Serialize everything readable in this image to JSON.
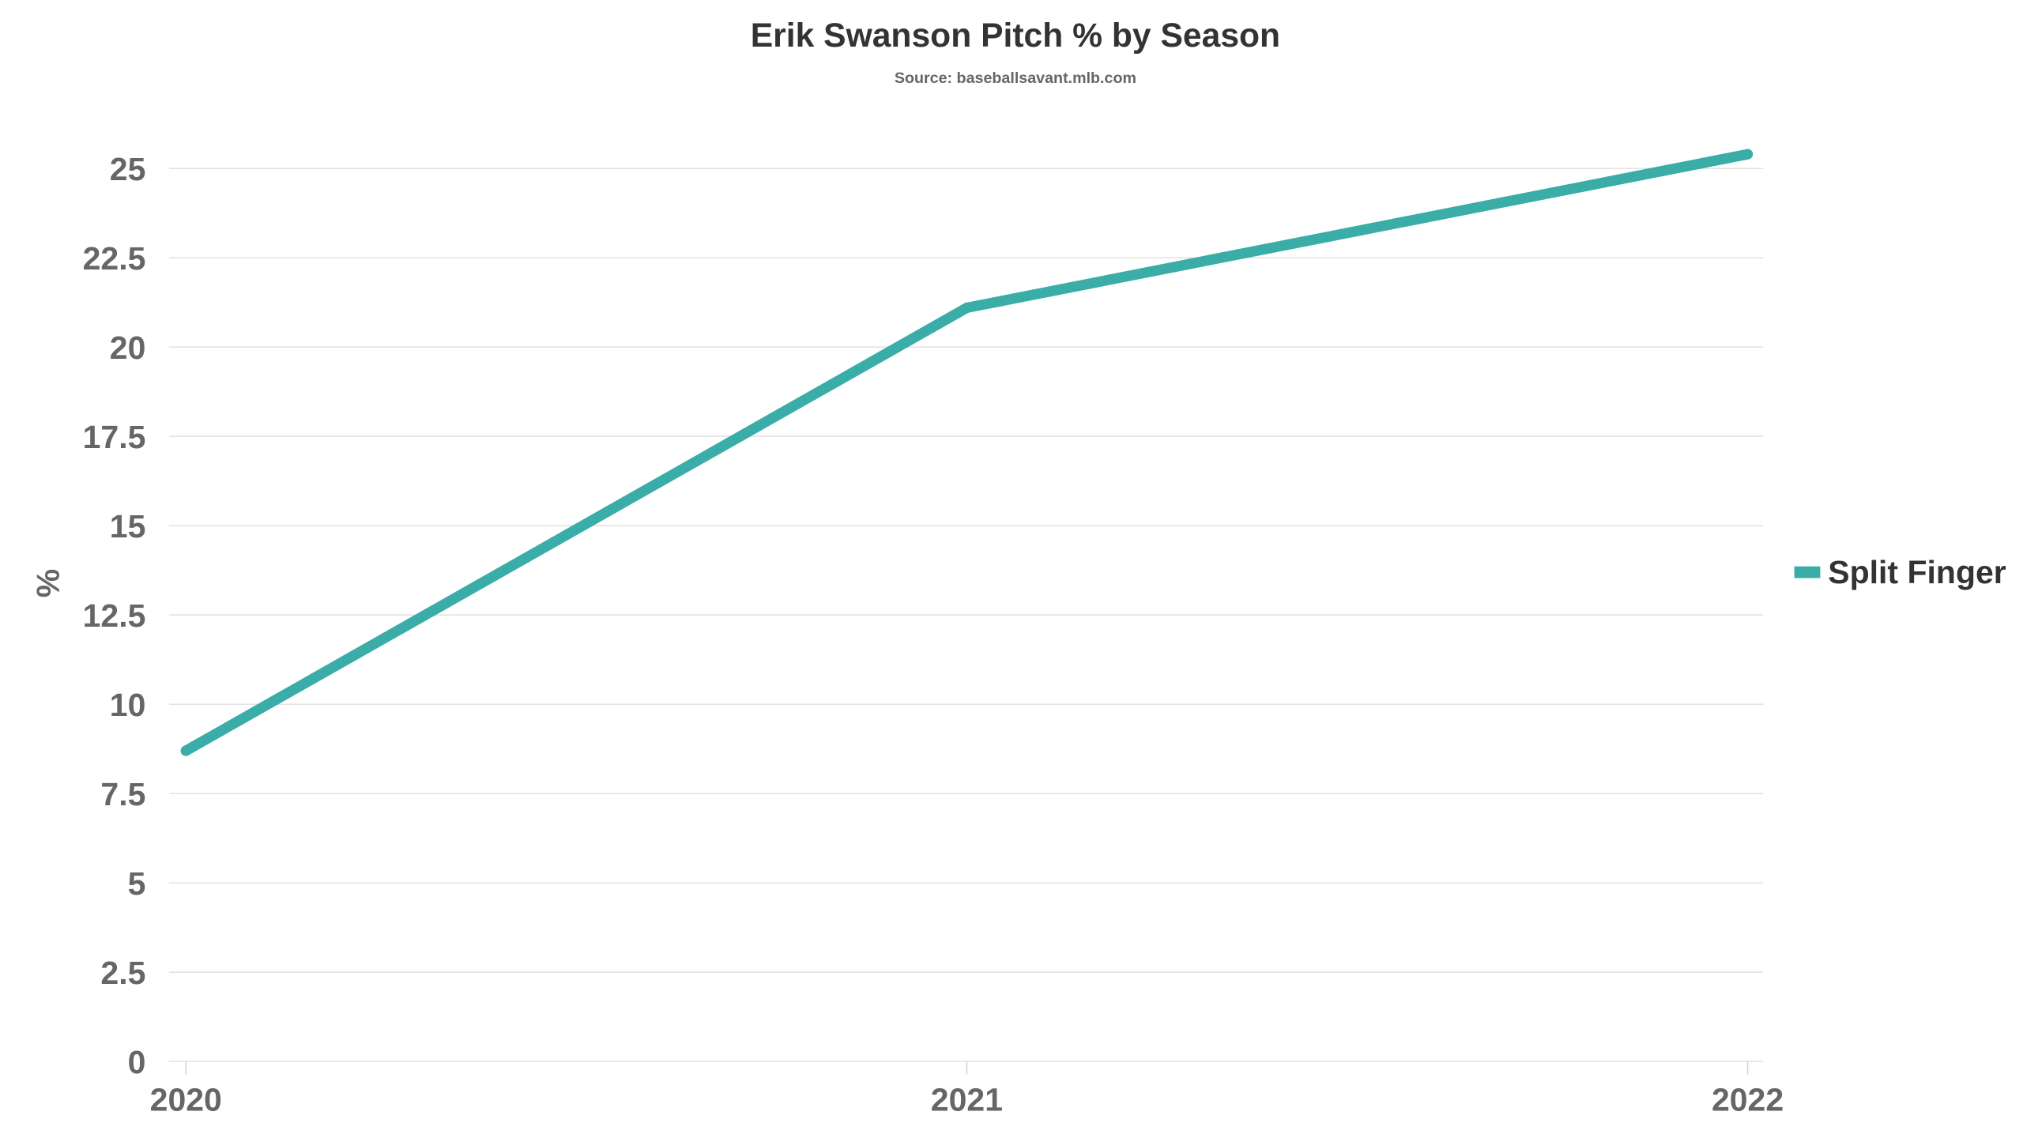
{
  "chart_data": {
    "type": "line",
    "title": "Erik Swanson Pitch % by Season",
    "subtitle": "Source: baseballsavant.mlb.com",
    "xlabel": "",
    "ylabel": "%",
    "categories": [
      "2020",
      "2021",
      "2022"
    ],
    "series": [
      {
        "name": "Split Finger",
        "color": "#3aada8",
        "values": [
          8.7,
          21.1,
          25.4
        ]
      }
    ],
    "ylim": [
      0,
      25
    ],
    "yticks": [
      "0",
      "2.5",
      "5",
      "7.5",
      "10",
      "12.5",
      "15",
      "17.5",
      "20",
      "22.5",
      "25"
    ],
    "grid": true,
    "legend": "right"
  }
}
